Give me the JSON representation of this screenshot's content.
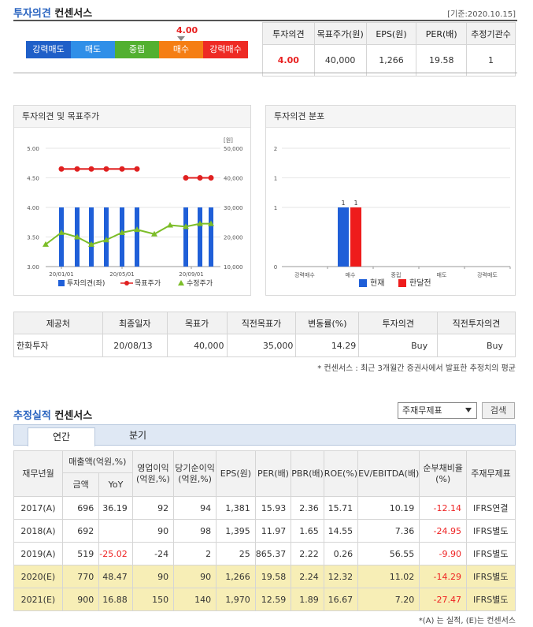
{
  "header": {
    "title_accent": "투자의견",
    "title_rest": "컨센서스",
    "base_date": "[기준:2020.10.15]"
  },
  "opinion_scale": {
    "current_value": "4.00",
    "marker_value": 4.0,
    "segments": [
      {
        "label": "강력매도",
        "color": "#1f5fc8"
      },
      {
        "label": "매도",
        "color": "#2f8fe8"
      },
      {
        "label": "중립",
        "color": "#52b030"
      },
      {
        "label": "매수",
        "color": "#f57e14"
      },
      {
        "label": "강력매수",
        "color": "#ee2a24"
      }
    ]
  },
  "consensus_table": {
    "headers": [
      "투자의견",
      "목표주가(원)",
      "EPS(원)",
      "PER(배)",
      "추정기관수"
    ],
    "values": [
      "4.00",
      "40,000",
      "1,266",
      "19.58",
      "1"
    ]
  },
  "chart1": {
    "title": "투자의견 및 목표주가",
    "chart_data": {
      "type": "bar",
      "y_left_ticks": [
        "5.00",
        "4.50",
        "4.00",
        "3.50",
        "3.00"
      ],
      "y_right_unit": "[원]",
      "y_right_ticks": [
        "50,000",
        "40,000",
        "30,000",
        "20,000",
        "10,000"
      ],
      "x_ticks": [
        "20/01/01",
        "20/05/01",
        "20/09/01"
      ],
      "ylim_left": [
        3.0,
        5.0
      ],
      "ylim_right": [
        10000,
        50000
      ],
      "bar_values": [
        4,
        4,
        4,
        4,
        4,
        4,
        4,
        4,
        4
      ],
      "target_price": [
        43000,
        43000,
        43000,
        43000,
        43000,
        43000,
        40000,
        40000,
        40000
      ],
      "adjusted_price": [
        17500,
        21500,
        20000,
        17500,
        19000,
        21500,
        22500,
        21000,
        24000,
        23500,
        24500,
        24500
      ],
      "legend": [
        "투자의견(좌)",
        "목표주가",
        "수정주가"
      ],
      "colors": {
        "bar": "#1f5fd8",
        "target": "#e02020",
        "adjusted": "#7cbd28"
      }
    }
  },
  "chart2": {
    "title": "투자의견 분포",
    "chart_data": {
      "type": "bar",
      "categories": [
        "강력매수",
        "매수",
        "중립",
        "매도",
        "강력매도"
      ],
      "y_ticks": [
        "2",
        "1",
        "1",
        "0"
      ],
      "ylim": [
        0,
        2
      ],
      "series": [
        {
          "name": "현재",
          "values": [
            0,
            1,
            0,
            0,
            0
          ],
          "color": "#1f5fd8"
        },
        {
          "name": "한달전",
          "values": [
            0,
            1,
            0,
            0,
            0
          ],
          "color": "#ee1c1c"
        }
      ]
    }
  },
  "broker_table": {
    "headers": [
      "제공처",
      "최종일자",
      "목표가",
      "직전목표가",
      "변동률(%)",
      "투자의견",
      "직전투자의견"
    ],
    "rows": [
      [
        "한화투자",
        "20/08/13",
        "40,000",
        "35,000",
        "14.29",
        "Buy",
        "Buy"
      ]
    ],
    "note": "* 컨센서스 : 최근 3개월간 증권사에서 발표한 추정치의 평균"
  },
  "estimates": {
    "title_accent": "추정실적",
    "title_rest": "컨센서스",
    "select_value": "주재무제표",
    "view_button": "검색",
    "tabs": [
      "연간",
      "분기"
    ],
    "headers": {
      "year": "재무년월",
      "sales": "매출액(억원,%)",
      "sales_amount": "금액",
      "sales_yoy": "YoY",
      "op_income": "영업이익(억원,%)",
      "net_income": "당기순이익(억원,%)",
      "eps": "EPS(원)",
      "per": "PER(배)",
      "pbr": "PBR(배)",
      "roe": "ROE(%)",
      "ev_ebitda": "EV/EBITDA(배)",
      "net_debt": "순부채비율(%)",
      "main_fs": "주재무제표"
    },
    "rows": [
      [
        "2017(A)",
        "696",
        "36.19",
        "92",
        "94",
        "1,381",
        "15.93",
        "2.36",
        "15.71",
        "10.19",
        "-12.14",
        "IFRS연결"
      ],
      [
        "2018(A)",
        "692",
        "",
        "90",
        "98",
        "1,395",
        "11.97",
        "1.65",
        "14.55",
        "7.36",
        "-24.95",
        "IFRS별도"
      ],
      [
        "2019(A)",
        "519",
        "-25.02",
        "-24",
        "2",
        "25",
        "865.37",
        "2.22",
        "0.26",
        "56.55",
        "-9.90",
        "IFRS별도"
      ],
      [
        "2020(E)",
        "770",
        "48.47",
        "90",
        "90",
        "1,266",
        "19.58",
        "2.24",
        "12.32",
        "11.02",
        "-14.29",
        "IFRS별도"
      ],
      [
        "2021(E)",
        "900",
        "16.88",
        "150",
        "140",
        "1,970",
        "12.59",
        "1.89",
        "16.67",
        "7.20",
        "-27.47",
        "IFRS별도"
      ]
    ],
    "footnote": "*(A) 는 실적, (E)는 컨센서스"
  }
}
